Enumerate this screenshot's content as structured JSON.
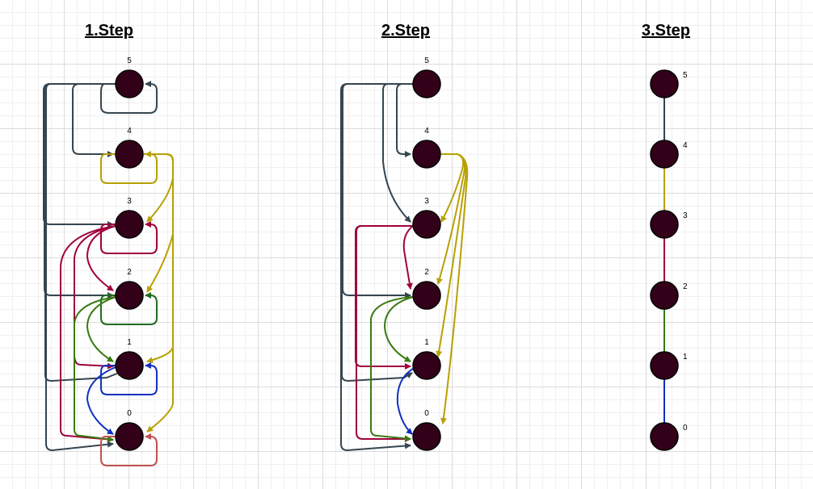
{
  "titles": [
    "1.Step",
    "2.Step",
    "3.Step"
  ],
  "node_labels": [
    "5",
    "4",
    "3",
    "2",
    "1",
    "0"
  ],
  "colors": {
    "node_fill": "#33001a",
    "slate": "#36454f",
    "gold": "#b8a000",
    "crimson": "#a0003c",
    "green": "#3a7a10",
    "dark_green": "#1f6b1f",
    "blue": "#1030c0",
    "salmon": "#c05050"
  }
}
